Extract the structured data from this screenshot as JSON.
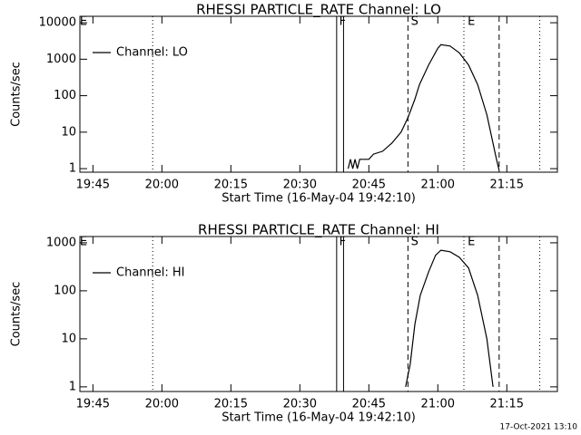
{
  "chart_data": [
    {
      "type": "line",
      "title": "RHESSI PARTICLE_RATE Channel: LO",
      "xlabel": "Start Time (16-May-04 19:42:10)",
      "ylabel": "Counts/sec",
      "x": [
        "20:40:30",
        "20:41:00",
        "20:41:30",
        "20:42:00",
        "20:42:30",
        "20:43:00",
        "20:44:00",
        "20:45:00",
        "20:46:00",
        "20:48:00",
        "20:50:00",
        "20:52:00",
        "20:53:30",
        "20:55:00",
        "20:56:00",
        "20:58:00",
        "21:00:00",
        "21:00:40",
        "21:02:40",
        "21:04:40",
        "21:06:40",
        "21:08:40",
        "21:10:40",
        "21:12:40",
        "21:13:20"
      ],
      "series": [
        {
          "name": "Channel: LO",
          "color": "#000000",
          "values": [
            1,
            1.8,
            1,
            1.8,
            1,
            1.8,
            1.8,
            1.8,
            2.5,
            3,
            5,
            10,
            25,
            80,
            200,
            700,
            2000,
            2500,
            2300,
            1500,
            700,
            200,
            30,
            2,
            0.9
          ]
        }
      ],
      "xlim": [
        "19:42:10",
        "21:26:00"
      ],
      "xticks": [
        "19:45",
        "20:00",
        "20:15",
        "20:30",
        "20:45",
        "21:00",
        "21:15"
      ],
      "ylim": [
        0.8,
        15000
      ],
      "yticks": [
        1,
        10,
        100,
        1000,
        10000
      ],
      "log_y": true,
      "legend": "upper left",
      "vlines": [
        {
          "x": "19:58:00",
          "style": "dotted"
        },
        {
          "x": "20:38:00",
          "style": "solid"
        },
        {
          "x": "20:39:30",
          "style": "solid"
        },
        {
          "x": "20:53:30",
          "style": "dashed"
        },
        {
          "x": "21:05:40",
          "style": "dotted"
        },
        {
          "x": "21:13:20",
          "style": "dashed"
        },
        {
          "x": "21:22:10",
          "style": "dotted"
        }
      ],
      "annotations": [
        {
          "text": "E",
          "x": "19:42:10"
        },
        {
          "text": "F",
          "x": "20:38:30"
        },
        {
          "text": "S",
          "x": "20:54:10"
        },
        {
          "text": "E",
          "x": "21:06:30"
        }
      ]
    },
    {
      "type": "line",
      "title": "RHESSI PARTICLE_RATE Channel: HI",
      "xlabel": "Start Time (16-May-04 19:42:10)",
      "ylabel": "Counts/sec",
      "x": [
        "20:53:00",
        "20:54:00",
        "20:55:00",
        "20:56:10",
        "20:58:00",
        "20:59:30",
        "21:00:40",
        "21:02:40",
        "21:04:40",
        "21:06:40",
        "21:08:40",
        "21:10:40",
        "21:12:00"
      ],
      "series": [
        {
          "name": "Channel: HI",
          "color": "#000000",
          "values": [
            1,
            3,
            20,
            80,
            250,
            550,
            700,
            650,
            500,
            300,
            80,
            10,
            1
          ]
        }
      ],
      "xlim": [
        "19:42:10",
        "21:26:00"
      ],
      "xticks": [
        "19:45",
        "20:00",
        "20:15",
        "20:30",
        "20:45",
        "21:00",
        "21:15"
      ],
      "ylim": [
        0.8,
        1350
      ],
      "yticks": [
        1,
        10,
        100,
        1000
      ],
      "log_y": true,
      "legend": "upper left",
      "vlines": [
        {
          "x": "19:58:00",
          "style": "dotted"
        },
        {
          "x": "20:38:00",
          "style": "solid"
        },
        {
          "x": "20:39:30",
          "style": "solid"
        },
        {
          "x": "20:53:30",
          "style": "dashed"
        },
        {
          "x": "21:05:40",
          "style": "dotted"
        },
        {
          "x": "21:13:20",
          "style": "dashed"
        },
        {
          "x": "21:22:10",
          "style": "dotted"
        }
      ],
      "annotations": [
        {
          "text": "E",
          "x": "19:42:10"
        },
        {
          "text": "F",
          "x": "20:38:30"
        },
        {
          "text": "S",
          "x": "20:54:10"
        },
        {
          "text": "E",
          "x": "21:06:30"
        }
      ]
    }
  ],
  "footer": "17-Oct-2021 13:10"
}
